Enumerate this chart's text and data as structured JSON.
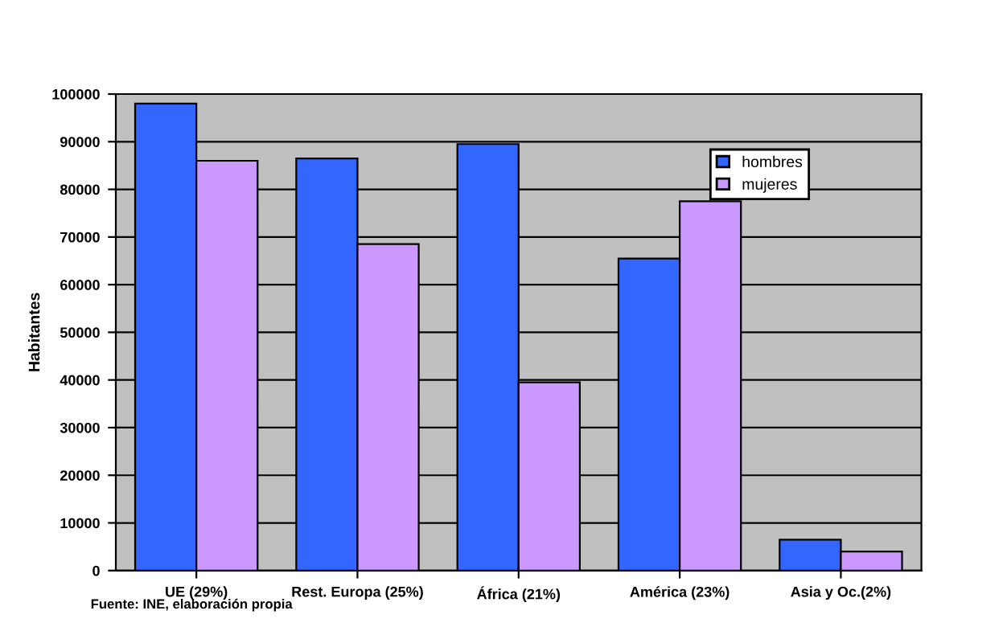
{
  "chart_data": {
    "type": "bar",
    "ylabel": "Habitantes",
    "categories": [
      "UE (29%)",
      "Rest. Europa (25%)",
      "África (21%)",
      "América (23%)",
      "Asia y Oc.(2%)"
    ],
    "series": [
      {
        "name": "hombres",
        "color": "#3366ff",
        "values": [
          98000,
          86500,
          89500,
          65500,
          6500
        ]
      },
      {
        "name": "mujeres",
        "color": "#cc99ff",
        "values": [
          86000,
          68500,
          39500,
          77500,
          4000
        ]
      }
    ],
    "ylim": [
      0,
      100000
    ],
    "yticks": [
      0,
      10000,
      20000,
      30000,
      40000,
      50000,
      60000,
      70000,
      80000,
      90000,
      100000
    ],
    "grid": "y",
    "legend": "top right",
    "annotations": [
      "Fuente: INE, elaboración propia"
    ]
  }
}
